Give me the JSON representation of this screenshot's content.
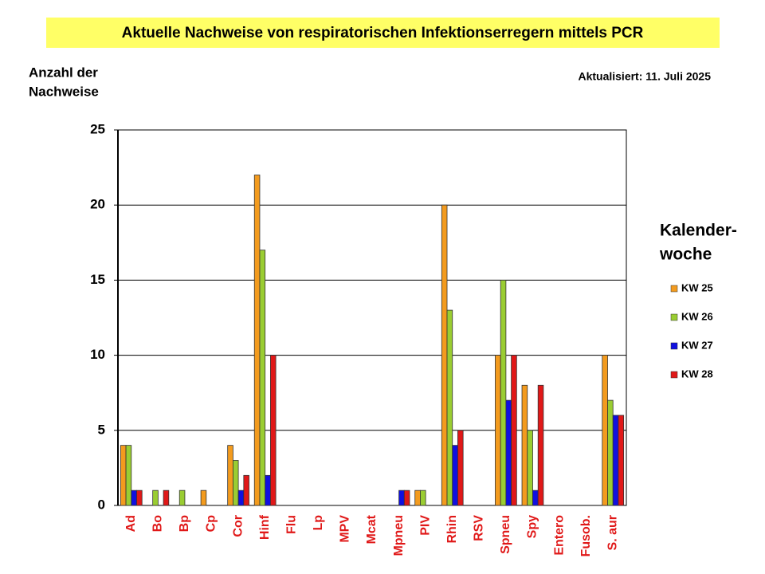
{
  "chart_data": {
    "type": "bar",
    "title": "Aktuelle Nachweise von respiratorischen Infektionserregern mittels PCR",
    "y_label": [
      "Anzahl der",
      "Nachweise"
    ],
    "updated": "Aktualisiert:  11. Juli 2025",
    "legend_title": [
      "Kalender-",
      "woche"
    ],
    "categories": [
      "Ad",
      "Bo",
      "Bp",
      "Cp",
      "Cor",
      "Hinf",
      "Flu",
      "Lp",
      "MPV",
      "Mcat",
      "Mpneu",
      "PIV",
      "Rhin",
      "RSV",
      "Spneu",
      "Spy",
      "Entero",
      "Fusob.",
      "S. aur"
    ],
    "series": [
      {
        "name": "KW 25",
        "color": "#f39b1e",
        "values": [
          4,
          0,
          0,
          1,
          4,
          22,
          0,
          0,
          0,
          0,
          0,
          1,
          20,
          0,
          10,
          8,
          0,
          0,
          10
        ]
      },
      {
        "name": "KW 26",
        "color": "#9acd32",
        "values": [
          4,
          1,
          1,
          0,
          3,
          17,
          0,
          0,
          0,
          0,
          0,
          1,
          13,
          0,
          15,
          5,
          0,
          0,
          7
        ]
      },
      {
        "name": "KW 27",
        "color": "#1010e0",
        "values": [
          1,
          0,
          0,
          0,
          1,
          2,
          0,
          0,
          0,
          0,
          1,
          0,
          4,
          0,
          7,
          1,
          0,
          0,
          6
        ]
      },
      {
        "name": "KW 28",
        "color": "#e01818",
        "values": [
          1,
          1,
          0,
          0,
          2,
          10,
          0,
          0,
          0,
          0,
          1,
          0,
          5,
          0,
          10,
          8,
          0,
          0,
          6
        ]
      }
    ],
    "ylim": [
      0,
      25
    ],
    "yticks": [
      0,
      5,
      10,
      15,
      20,
      25
    ],
    "grid": true
  }
}
